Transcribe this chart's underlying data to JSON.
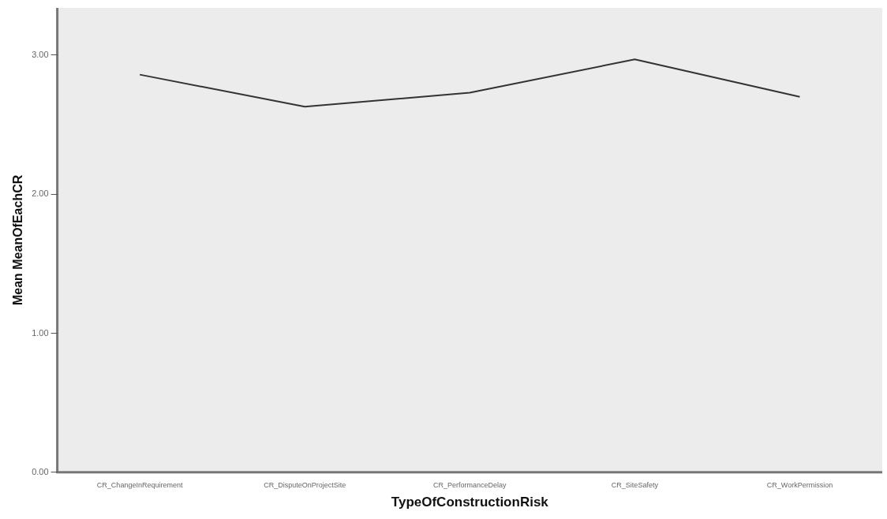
{
  "chart_data": {
    "type": "line",
    "xlabel": "TypeOfConstructionRisk",
    "ylabel": "Mean MeanOfEachCR",
    "categories": [
      "CR_ChangeInRequirement",
      "CR_DisputeOnProjectSite",
      "CR_PerformanceDelay",
      "CR_SiteSafety",
      "CR_WorkPermission"
    ],
    "values": [
      2.86,
      2.63,
      2.73,
      2.97,
      2.7
    ],
    "color": "#333333",
    "ylim": [
      0,
      3.34
    ],
    "yticks": [
      {
        "value": 0,
        "label": "0.00"
      },
      {
        "value": 1,
        "label": "1.00"
      },
      {
        "value": 2,
        "label": "2.00"
      },
      {
        "value": 3,
        "label": "3.00"
      }
    ],
    "grid": false,
    "legend": false,
    "marker": "none"
  }
}
